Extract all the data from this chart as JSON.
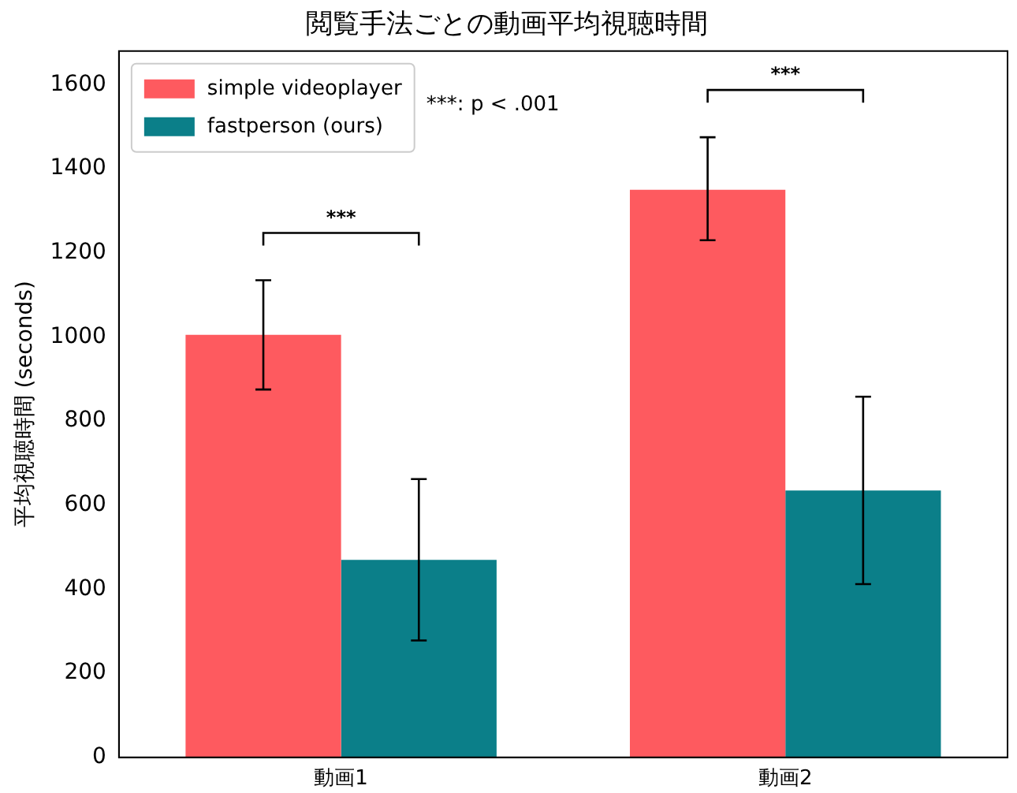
{
  "chart_data": {
    "type": "bar",
    "title": "閲覧手法ごとの動画平均視聴時間",
    "ylabel": "平均視聴時間 (seconds)",
    "categories": [
      "動画1",
      "動画2"
    ],
    "series": [
      {
        "name": "simple videoplayer",
        "color": "#fe5a5f",
        "values": [
          1005,
          1350
        ],
        "errors": [
          [
            875,
            1135
          ],
          [
            1230,
            1475
          ]
        ]
      },
      {
        "name": "fastperson (ours)",
        "color": "#0b7f89",
        "values": [
          470,
          635
        ],
        "errors": [
          [
            278,
            662
          ],
          [
            412,
            858
          ]
        ]
      }
    ],
    "ylim": [
      0,
      1680
    ],
    "yticks": [
      0,
      200,
      400,
      600,
      800,
      1000,
      1200,
      1400,
      1600
    ],
    "grid": false,
    "legend": "top left",
    "annotations": [
      "***",
      "***",
      "***: p < .001"
    ]
  }
}
